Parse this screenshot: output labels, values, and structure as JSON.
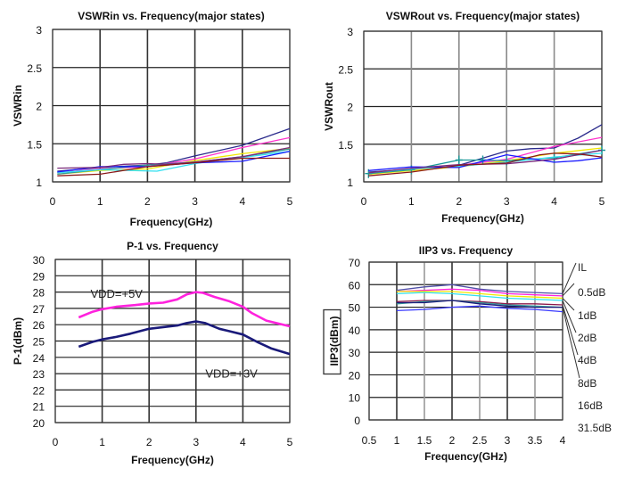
{
  "chart_data": [
    {
      "id": "vswrin",
      "type": "line",
      "title": "VSWRin vs. Frequency(major states)",
      "xlabel": "Frequency(GHz)",
      "ylabel": "VSWRin",
      "xlim": [
        0,
        5
      ],
      "ylim": [
        1,
        3
      ],
      "xticks": [
        0,
        1,
        2,
        3,
        4,
        5
      ],
      "xtick_labels": [
        "0",
        "1",
        "2",
        "3",
        "4",
        "5"
      ],
      "yticks": [
        1,
        1.5,
        2,
        2.5,
        3
      ],
      "ytick_labels": [
        "1",
        "1.5",
        "2",
        "2.5",
        "3"
      ],
      "grid": true,
      "series": [
        {
          "name": "state-navy",
          "color": "#2b2b8c",
          "x": [
            0.1,
            1,
            2,
            2.4,
            3,
            4,
            5
          ],
          "y": [
            1.14,
            1.19,
            1.22,
            1.25,
            1.34,
            1.48,
            1.7
          ]
        },
        {
          "name": "state-magenta",
          "color": "#ff33cc",
          "x": [
            0.1,
            1,
            2,
            3,
            4,
            5
          ],
          "y": [
            1.12,
            1.17,
            1.2,
            1.3,
            1.45,
            1.58
          ]
        },
        {
          "name": "state-yellow",
          "color": "#f2e600",
          "x": [
            0.1,
            1,
            2,
            3,
            4,
            5
          ],
          "y": [
            1.1,
            1.15,
            1.17,
            1.28,
            1.37,
            1.44
          ]
        },
        {
          "name": "state-teal",
          "color": "#339999",
          "x": [
            0.1,
            1,
            2,
            3,
            4,
            5
          ],
          "y": [
            1.1,
            1.16,
            1.22,
            1.26,
            1.33,
            1.43
          ]
        },
        {
          "name": "state-cyan",
          "color": "#33e0f0",
          "x": [
            0.1,
            1,
            2.2,
            3,
            4,
            5
          ],
          "y": [
            1.12,
            1.16,
            1.14,
            1.24,
            1.32,
            1.4
          ]
        },
        {
          "name": "state-blue",
          "color": "#1a1aff",
          "x": [
            0.1,
            1,
            2,
            3,
            4,
            5
          ],
          "y": [
            1.13,
            1.2,
            1.2,
            1.25,
            1.27,
            1.4
          ]
        },
        {
          "name": "state-purple",
          "color": "#7a2a7a",
          "x": [
            0.1,
            1,
            1.5,
            2,
            2.4,
            3,
            4,
            5
          ],
          "y": [
            1.18,
            1.19,
            1.23,
            1.24,
            1.23,
            1.26,
            1.33,
            1.45
          ]
        },
        {
          "name": "state-maroon",
          "color": "#8b1a1a",
          "x": [
            0.1,
            1,
            2,
            3,
            4,
            5
          ],
          "y": [
            1.08,
            1.1,
            1.2,
            1.25,
            1.31,
            1.31
          ]
        }
      ]
    },
    {
      "id": "vswrout",
      "type": "line",
      "title": "VSWRout vs. Frequency(major states)",
      "xlabel": "Frequency(GHz)",
      "ylabel": "VSWRout",
      "xlim": [
        0,
        5
      ],
      "ylim": [
        1,
        3
      ],
      "xticks": [
        0,
        1,
        2,
        3,
        4,
        5
      ],
      "xtick_labels": [
        "0",
        "1",
        "2",
        "3",
        "4",
        "5"
      ],
      "yticks": [
        1,
        1.5,
        2,
        2.5,
        3
      ],
      "ytick_labels": [
        "1",
        "1.5",
        "2",
        "2.5",
        "3"
      ],
      "grid": true,
      "series": [
        {
          "name": "state-navy",
          "color": "#2b2b8c",
          "x": [
            0.1,
            1,
            2,
            3,
            3.5,
            4,
            4.5,
            5
          ],
          "y": [
            1.13,
            1.17,
            1.22,
            1.41,
            1.44,
            1.45,
            1.58,
            1.76
          ]
        },
        {
          "name": "state-magenta",
          "color": "#ff33cc",
          "x": [
            0.1,
            1,
            2,
            3,
            4,
            5
          ],
          "y": [
            1.12,
            1.16,
            1.22,
            1.3,
            1.47,
            1.59
          ]
        },
        {
          "name": "state-yellow",
          "color": "#f2e600",
          "x": [
            0.1,
            1,
            2,
            3,
            4,
            5
          ],
          "y": [
            1.1,
            1.15,
            1.2,
            1.28,
            1.38,
            1.45
          ]
        },
        {
          "name": "state-teal-marked",
          "color": "#1a9999",
          "x": [
            0.1,
            1,
            2,
            2.5,
            3,
            4,
            5
          ],
          "y": [
            1.11,
            1.16,
            1.29,
            1.29,
            1.28,
            1.32,
            1.42
          ]
        },
        {
          "name": "state-cyan",
          "color": "#33e0f0",
          "x": [
            0.1,
            1,
            2,
            3,
            4,
            5
          ],
          "y": [
            1.12,
            1.17,
            1.21,
            1.26,
            1.33,
            1.38
          ]
        },
        {
          "name": "state-blue",
          "color": "#1a1aff",
          "x": [
            0.1,
            1,
            2,
            3,
            3.5,
            4,
            4.5,
            5
          ],
          "y": [
            1.15,
            1.2,
            1.19,
            1.36,
            1.31,
            1.26,
            1.28,
            1.32
          ]
        },
        {
          "name": "state-purple",
          "color": "#7a2a7a",
          "x": [
            0.1,
            1,
            2,
            3,
            4,
            5
          ],
          "y": [
            1.12,
            1.18,
            1.23,
            1.24,
            1.3,
            1.42
          ]
        },
        {
          "name": "state-maroon",
          "color": "#8b1a1a",
          "x": [
            0.1,
            1,
            2,
            3,
            3.7,
            4,
            4.5,
            5
          ],
          "y": [
            1.08,
            1.13,
            1.22,
            1.25,
            1.36,
            1.38,
            1.37,
            1.33
          ]
        }
      ],
      "markers": {
        "series": "state-teal-marked",
        "symbol": "+"
      }
    },
    {
      "id": "p1db",
      "type": "line",
      "title": "P-1 vs. Frequency",
      "xlabel": "Frequency(GHz)",
      "ylabel": "P-1(dBm)",
      "xlim": [
        0,
        5
      ],
      "ylim": [
        20,
        30
      ],
      "xticks": [
        0,
        1,
        2,
        3,
        4,
        5
      ],
      "xtick_labels": [
        "0",
        "1",
        "2",
        "3",
        "4",
        "5"
      ],
      "yticks": [
        20,
        21,
        22,
        23,
        24,
        25,
        26,
        27,
        28,
        29,
        30
      ],
      "ytick_labels": [
        "20",
        "21",
        "22",
        "23",
        "24",
        "25",
        "26",
        "27",
        "28",
        "29",
        "30"
      ],
      "grid": true,
      "series": [
        {
          "name": "VDD=+5V",
          "color": "#ff22dd",
          "x": [
            0.5,
            0.8,
            1,
            1.3,
            1.7,
            2,
            2.3,
            2.6,
            2.8,
            3,
            3.15,
            3.4,
            3.7,
            4,
            4.2,
            4.5,
            5
          ],
          "y": [
            26.45,
            26.8,
            26.95,
            27.1,
            27.2,
            27.3,
            27.35,
            27.55,
            27.85,
            28.0,
            27.95,
            27.7,
            27.45,
            27.1,
            26.7,
            26.25,
            25.9
          ]
        },
        {
          "name": "VDD=+3V",
          "color": "#1a1a7a",
          "x": [
            0.5,
            0.8,
            1,
            1.3,
            1.6,
            2,
            2.3,
            2.6,
            2.8,
            3,
            3.2,
            3.5,
            4,
            4.3,
            4.6,
            5
          ],
          "y": [
            24.65,
            24.95,
            25.1,
            25.25,
            25.45,
            25.75,
            25.85,
            25.95,
            26.1,
            26.2,
            26.1,
            25.75,
            25.4,
            24.95,
            24.55,
            24.2
          ]
        }
      ],
      "annotations": [
        {
          "text": "VDD=+5V",
          "x": 0.75,
          "y": 27.65
        },
        {
          "text": "VDD=+3V",
          "x": 3.2,
          "y": 22.75
        }
      ]
    },
    {
      "id": "iip3",
      "type": "line",
      "title": "IIP3 vs. Frequency",
      "xlabel": "Frequency(GHz)",
      "ylabel": "IIP3(dBm)",
      "xlim": [
        0.5,
        4
      ],
      "ylim": [
        0,
        70
      ],
      "xticks": [
        0.5,
        1,
        1.5,
        2,
        2.5,
        3,
        3.5,
        4
      ],
      "xtick_labels": [
        "0.5",
        "1",
        "1.5",
        "2",
        "2.5",
        "3",
        "3.5",
        "4"
      ],
      "yticks": [
        0,
        10,
        20,
        30,
        40,
        50,
        60,
        70
      ],
      "ytick_labels": [
        "0",
        "10",
        "20",
        "30",
        "40",
        "50",
        "60",
        "70"
      ],
      "grid": true,
      "series": [
        {
          "name": "IL",
          "color": "#5050a8",
          "x": [
            1,
            1.5,
            2,
            2.5,
            3,
            3.5,
            4
          ],
          "y": [
            57.5,
            59,
            60,
            58,
            57,
            56.5,
            56
          ]
        },
        {
          "name": "0.5dB",
          "color": "#ff22dd",
          "x": [
            1,
            1.5,
            2,
            2.5,
            3,
            3.5,
            4
          ],
          "y": [
            57,
            57.5,
            58,
            57.5,
            56,
            55.5,
            55
          ]
        },
        {
          "name": "1dB",
          "color": "#f2e600",
          "x": [
            1,
            1.5,
            2,
            2.5,
            3,
            3.5,
            4
          ],
          "y": [
            57,
            57,
            57,
            56,
            55,
            54.5,
            54
          ]
        },
        {
          "name": "2dB",
          "color": "#33e0f0",
          "x": [
            1,
            1.5,
            2,
            2.5,
            3,
            3.5,
            4
          ],
          "y": [
            56,
            56.5,
            56,
            55,
            54,
            53.5,
            53
          ]
        },
        {
          "name": "4dB",
          "color": "#8b1a4a",
          "x": [
            1,
            1.5,
            2,
            2.5,
            3,
            3.5,
            4
          ],
          "y": [
            52.5,
            53,
            53,
            52.5,
            51.5,
            51.5,
            51
          ]
        },
        {
          "name": "8dB",
          "color": "#339999",
          "x": [
            1,
            1.5,
            2,
            2.5,
            3,
            3.5,
            4
          ],
          "y": [
            51.5,
            52.5,
            53,
            52,
            51,
            50.5,
            50
          ]
        },
        {
          "name": "16dB",
          "color": "#1a1a7a",
          "x": [
            1,
            1.5,
            2,
            2.5,
            3,
            3.5,
            4
          ],
          "y": [
            52,
            52,
            53,
            51.5,
            50.5,
            50,
            50
          ]
        },
        {
          "name": "31.5dB",
          "color": "#3a3aff",
          "x": [
            1,
            1.5,
            2,
            2.5,
            3,
            3.5,
            4
          ],
          "y": [
            48.5,
            49,
            50,
            50.5,
            49.5,
            49,
            48
          ]
        }
      ],
      "legend": {
        "placement": "right",
        "entries": [
          "IL",
          "0.5dB",
          "1dB",
          "2dB",
          "4dB",
          "8dB",
          "16dB",
          "31.5dB"
        ]
      }
    }
  ]
}
